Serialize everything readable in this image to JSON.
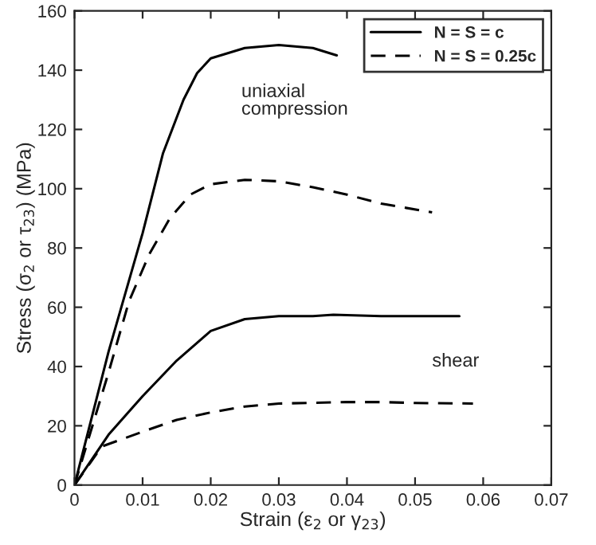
{
  "chart_data": {
    "type": "line",
    "xlabel": "Strain (ε$_{2}$ or γ$_{23}$)",
    "ylabel": "Stress (σ$_{2}$ or τ$_{23}$) (MPa)",
    "series": [
      {
        "name": "N = S = c",
        "color": "#000000",
        "line_style": "solid",
        "x": [
          0,
          0.005,
          0.01,
          0.013,
          0.016,
          0.018,
          0.02,
          0.025,
          0.03,
          0.035,
          0.0385
        ],
        "values": [
          0,
          45,
          85,
          112,
          130,
          139,
          144,
          147.5,
          148.5,
          147.5,
          145
        ]
      },
      {
        "name": "N = S = 0.25c",
        "color": "#000000",
        "line_style": "dashed",
        "x": [
          0,
          0.005,
          0.008,
          0.011,
          0.014,
          0.017,
          0.02,
          0.025,
          0.03,
          0.035,
          0.04,
          0.045,
          0.0525
        ],
        "values": [
          0,
          38,
          62,
          78,
          90,
          98,
          101.5,
          103,
          102.5,
          100.5,
          98,
          95,
          92
        ]
      },
      {
        "color": "#000000",
        "line_style": "solid",
        "x": [
          0,
          0.005,
          0.01,
          0.015,
          0.02,
          0.025,
          0.03,
          0.035,
          0.038,
          0.045,
          0.0565
        ],
        "values": [
          0,
          17,
          30,
          42,
          52,
          56,
          57,
          57,
          57.5,
          57,
          57
        ]
      },
      {
        "color": "#000000",
        "line_style": "dashed",
        "x": [
          0,
          0.004,
          0.01,
          0.015,
          0.02,
          0.025,
          0.03,
          0.04,
          0.045,
          0.05,
          0.0585
        ],
        "values": [
          0,
          13,
          18,
          22,
          24.5,
          26.5,
          27.5,
          28,
          28,
          27.7,
          27.5
        ]
      }
    ],
    "annotations": [
      "uniaxial\ncompression",
      "shear"
    ],
    "xlim": [
      0,
      0.07
    ],
    "xticks": [
      0,
      0.01,
      0.02,
      0.03,
      0.04,
      0.05,
      0.06,
      0.07
    ],
    "ylim": [
      0,
      160
    ],
    "yticks": [
      0,
      20,
      40,
      60,
      80,
      100,
      120,
      140,
      160
    ],
    "grid": false,
    "legend": "top right",
    "marker": "none"
  }
}
